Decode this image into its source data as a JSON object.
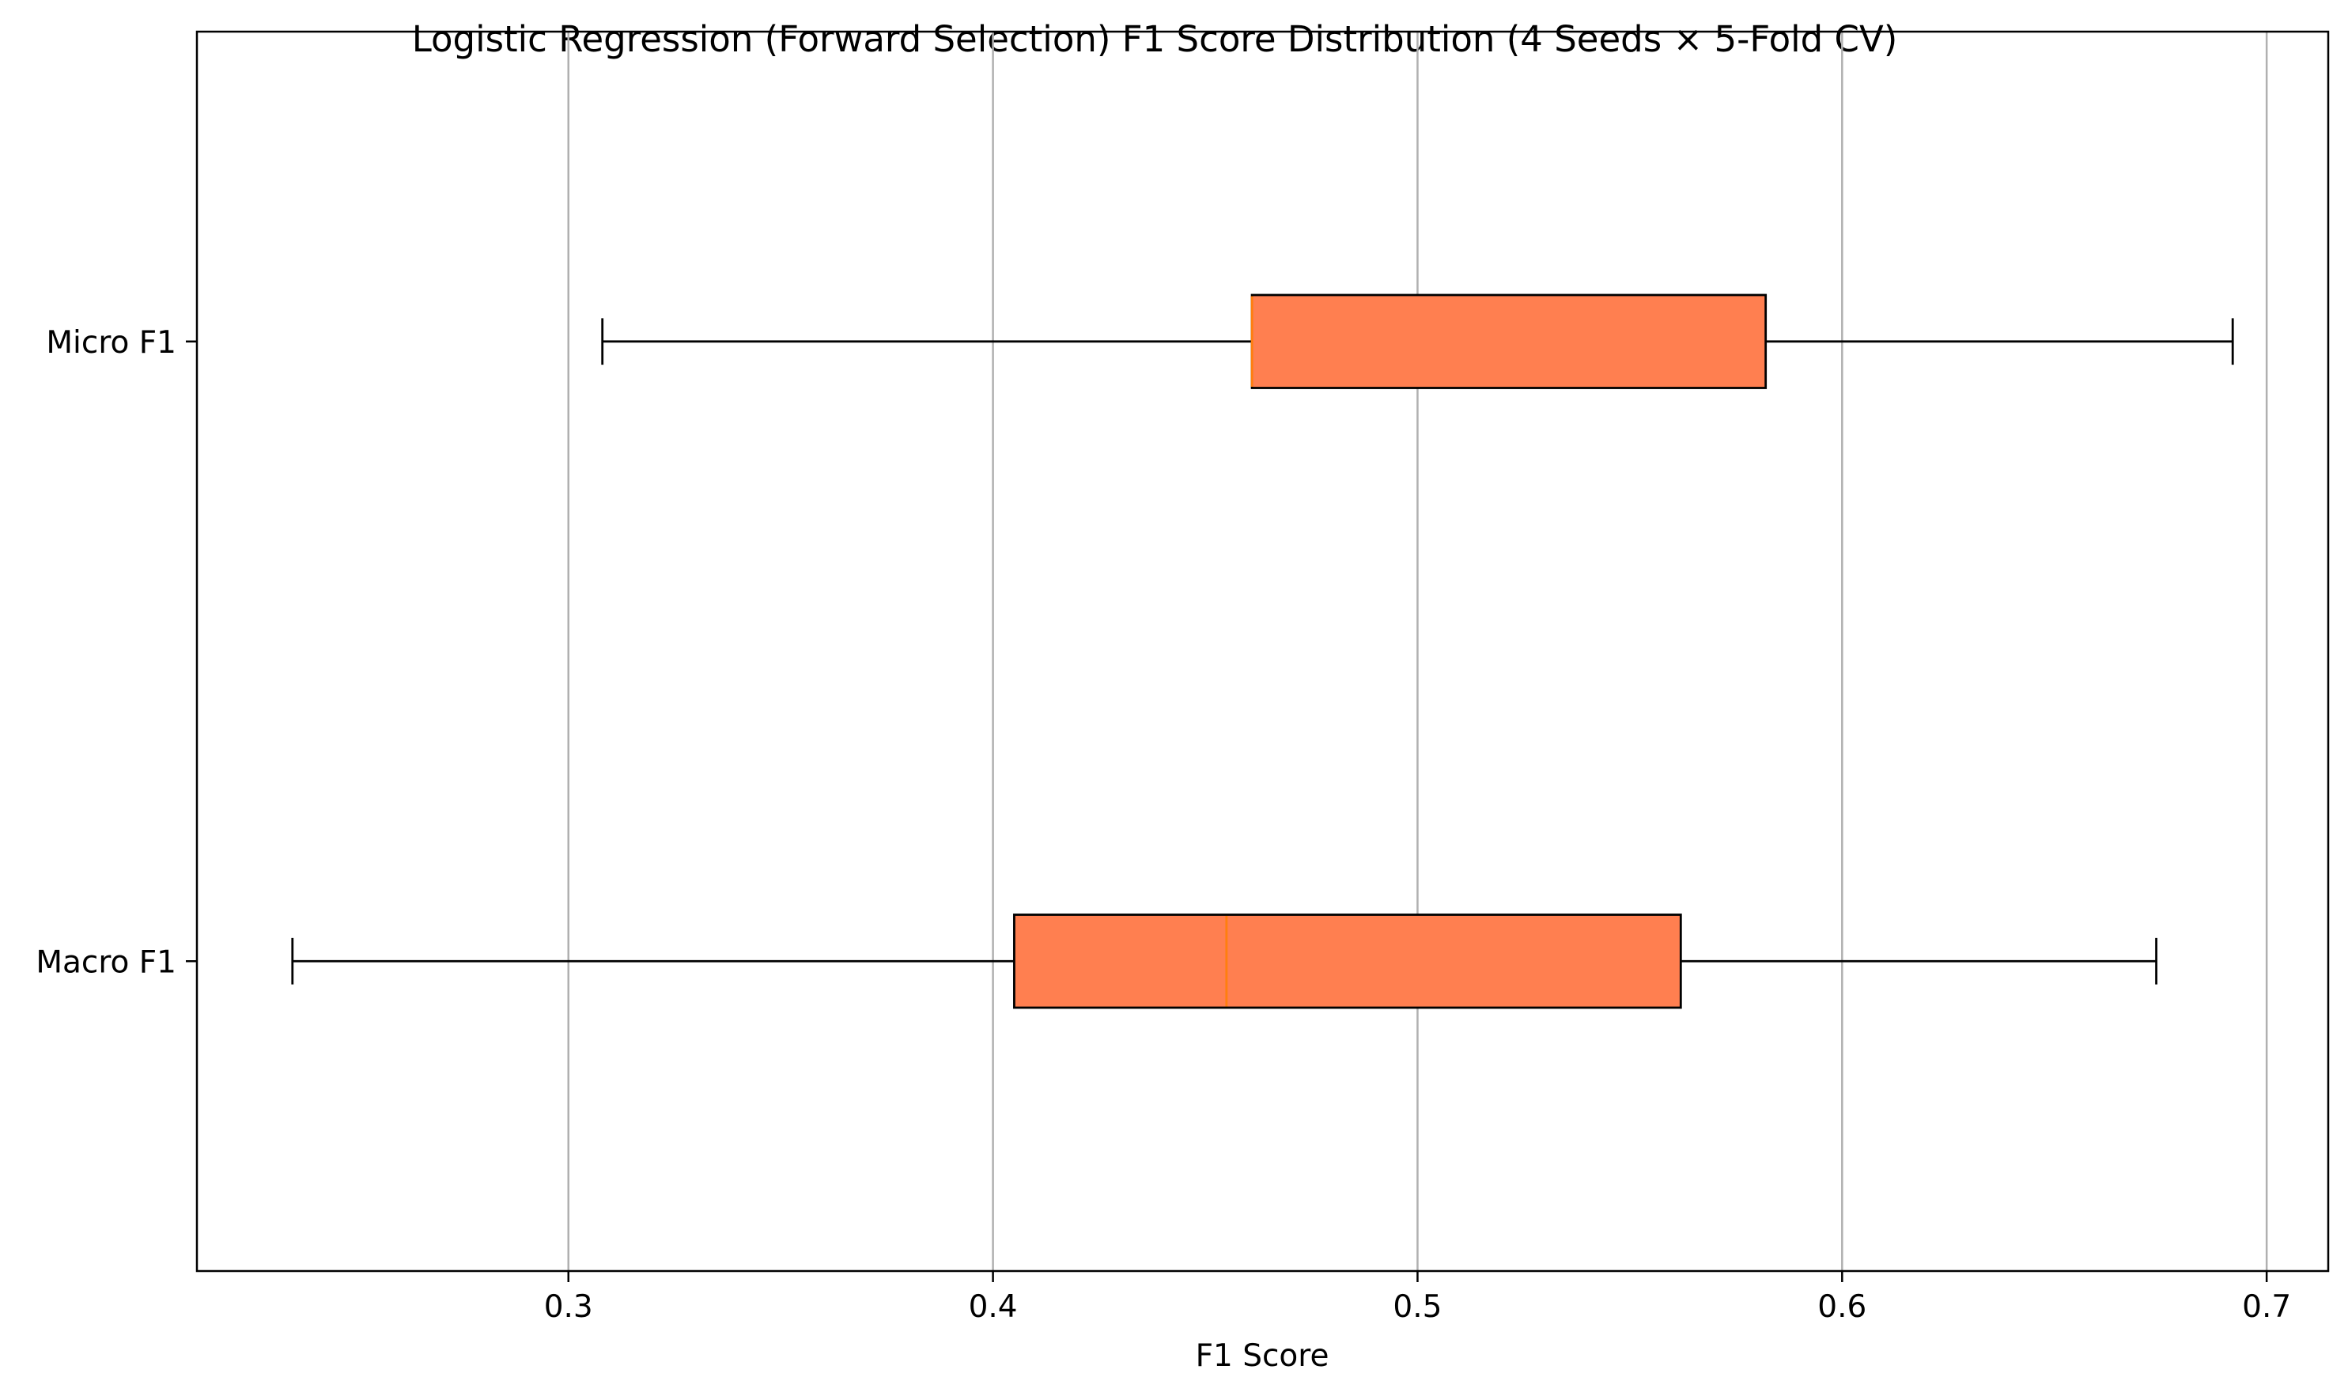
{
  "chart_data": {
    "type": "boxplot",
    "orientation": "horizontal",
    "title": "Logistic Regression (Forward Selection) F1 Score Distribution (4 Seeds × 5-Fold CV)",
    "xlabel": "F1 Score",
    "ylabel": "",
    "xlim": [
      0.2125,
      0.7145
    ],
    "x_ticks": [
      0.3,
      0.4,
      0.5,
      0.6,
      0.7
    ],
    "x_tick_labels": [
      "0.3",
      "0.4",
      "0.5",
      "0.6",
      "0.7"
    ],
    "grid": {
      "x": true,
      "y": false
    },
    "legend": "none",
    "categories": [
      "Micro F1",
      "Macro F1"
    ],
    "series": [
      {
        "category": "Micro F1",
        "whisker_low": 0.308,
        "q1": 0.461,
        "median": 0.461,
        "q3": 0.582,
        "whisker_high": 0.692
      },
      {
        "category": "Macro F1",
        "whisker_low": 0.235,
        "q1": 0.405,
        "median": 0.455,
        "q3": 0.562,
        "whisker_high": 0.674
      }
    ],
    "colors": {
      "box_fill": "#ff7f50",
      "box_edge": "#000000",
      "median": "#ff7f0e",
      "whisker": "#000000",
      "grid": "#b0b0b0",
      "axes": "#000000"
    }
  }
}
